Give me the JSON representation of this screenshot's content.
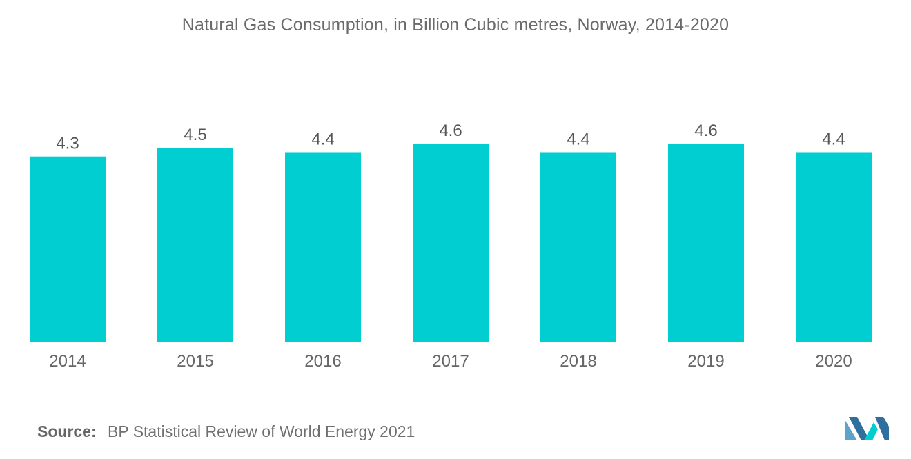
{
  "chart_data": {
    "type": "bar",
    "title": "Natural Gas Consumption, in Billion Cubic metres, Norway, 2014-2020",
    "categories": [
      "2014",
      "2015",
      "2016",
      "2017",
      "2018",
      "2019",
      "2020"
    ],
    "values": [
      4.3,
      4.5,
      4.4,
      4.6,
      4.4,
      4.6,
      4.4
    ],
    "value_labels": [
      "4.3",
      "4.5",
      "4.4",
      "4.6",
      "4.4",
      "4.6",
      "4.4"
    ],
    "xlabel": "",
    "ylabel": "",
    "ylim": [
      0,
      4.6
    ],
    "grid": false,
    "bar_color": "#00CED1"
  },
  "source": {
    "label": "Source:",
    "text": "BP Statistical Review of World Energy 2021"
  },
  "logo": {
    "icon": "mordor-logo-icon",
    "colors": [
      "#5FA3C9",
      "#2E6F9E",
      "#00CED1"
    ]
  }
}
